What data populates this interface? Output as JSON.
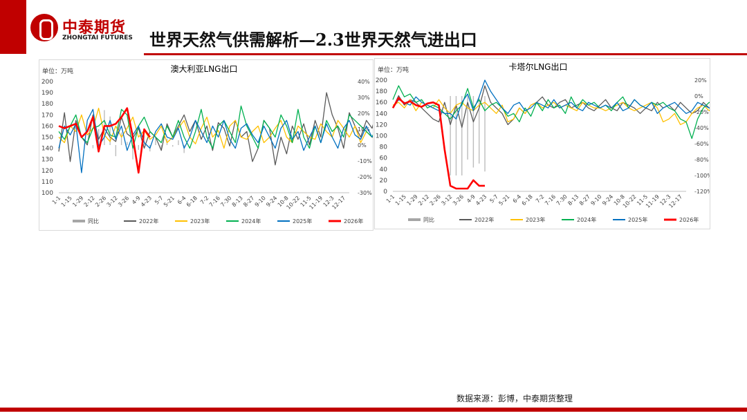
{
  "header": {
    "logo_cn": "中泰期货",
    "logo_en": "ZHONGTAI FUTURES",
    "page_title": "世界天然气供需解析—2.3世界天然气进出口"
  },
  "footer": {
    "source": "数据来源：彭博，中泰期货整理"
  },
  "colors": {
    "brand": "#c00000",
    "yoy": "#a6a6a6",
    "y2022": "#595959",
    "y2023": "#ffc000",
    "y2024": "#00b050",
    "y2025": "#0070c0",
    "y2026": "#ff0000"
  },
  "chart_data": [
    {
      "type": "line",
      "title": "澳大利亚LNG出口",
      "unit_label": "单位：万吨",
      "x_ticks": [
        "1-1",
        "1-15",
        "1-29",
        "2-12",
        "2-26",
        "3-12",
        "3-26",
        "4-9",
        "4-23",
        "5-7",
        "5-21",
        "6-4",
        "6-18",
        "7-2",
        "7-16",
        "7-30",
        "8-13",
        "8-27",
        "9-10",
        "9-24",
        "10-8",
        "10-22",
        "11-5",
        "11-19",
        "12-3",
        "12-17"
      ],
      "ylim": [
        100,
        200
      ],
      "y_ticks": [
        100,
        110,
        120,
        130,
        140,
        150,
        160,
        170,
        180,
        190,
        200
      ],
      "y2lim": [
        -30,
        40
      ],
      "y2_ticks": [
        "40%",
        "30%",
        "20%",
        "10%",
        "0%",
        "-10%",
        "-20%",
        "-30%"
      ],
      "legend": [
        "同比",
        "2022年",
        "2023年",
        "2024年",
        "2025年",
        "2026年"
      ],
      "series": [
        {
          "name": "同比",
          "axis": "right",
          "type": "bar",
          "week_start": 6,
          "values": [
            -2,
            10,
            22,
            18,
            -7,
            8,
            2,
            -9,
            -3,
            6,
            -4,
            5,
            -3,
            4,
            -1,
            3,
            -5
          ]
        },
        {
          "name": "2022年",
          "values": [
            137,
            172,
            128,
            165,
            150,
            143,
            170,
            148,
            158,
            150,
            146,
            168,
            153,
            149,
            158,
            140,
            155,
            150,
            138,
            162,
            150,
            160,
            170,
            155,
            165,
            148,
            160,
            138,
            163,
            158,
            142,
            165,
            150,
            155,
            128,
            140,
            165,
            158,
            125,
            150,
            135,
            160,
            148,
            162,
            143,
            165,
            150,
            190,
            170,
            158,
            140,
            172,
            160,
            150,
            165,
            158,
            175,
            150,
            160,
            170,
            155,
            148,
            162,
            170,
            183
          ]
        },
        {
          "name": "2023年",
          "values": [
            150,
            145,
            160,
            155,
            170,
            152,
            158,
            176,
            152,
            146,
            160,
            150,
            158,
            168,
            150,
            156,
            148,
            152,
            160,
            145,
            150,
            158,
            165,
            150,
            144,
            158,
            168,
            150,
            156,
            140,
            160,
            165,
            150,
            148,
            155,
            160,
            145,
            150,
            158,
            165,
            150,
            145,
            160,
            155,
            150,
            148,
            162,
            155,
            150,
            165,
            158,
            150,
            160,
            145,
            155,
            150,
            148,
            160,
            152,
            150,
            145,
            160,
            158,
            170,
            162
          ]
        },
        {
          "name": "2024年",
          "values": [
            155,
            148,
            160,
            170,
            150,
            145,
            158,
            160,
            165,
            152,
            150,
            175,
            170,
            140,
            160,
            168,
            155,
            150,
            145,
            160,
            150,
            165,
            150,
            140,
            155,
            175,
            150,
            140,
            160,
            165,
            155,
            145,
            178,
            160,
            150,
            140,
            165,
            158,
            150,
            170,
            160,
            145,
            175,
            150,
            140,
            160,
            145,
            165,
            155,
            160,
            150,
            170,
            165,
            160,
            155,
            150,
            162,
            158,
            160,
            155,
            150,
            145,
            162,
            160,
            165
          ]
        },
        {
          "name": "2025年",
          "values": [
            140,
            160,
            152,
            162,
            118,
            165,
            175,
            142,
            150,
            165,
            148,
            160,
            138,
            152,
            160,
            145,
            140,
            155,
            162,
            150,
            148,
            158,
            140,
            150,
            165,
            155,
            145,
            160,
            150,
            165,
            148,
            140,
            158,
            162,
            152,
            145,
            160,
            150,
            140,
            158,
            165,
            148,
            155,
            138,
            150,
            160,
            145,
            162,
            150,
            140,
            158,
            165,
            152,
            148,
            160,
            150,
            155,
            160,
            148,
            145,
            152,
            150,
            155,
            153,
            154
          ]
        },
        {
          "name": "2026年",
          "values": [
            160,
            158,
            160,
            162,
            150,
            155,
            168,
            137,
            160,
            160,
            162,
            168,
            176,
            150,
            118,
            157,
            150
          ]
        }
      ]
    },
    {
      "type": "line",
      "title": "卡塔尔LNG出口",
      "unit_label": "单位：万吨",
      "x_ticks": [
        "1-1",
        "1-15",
        "1-29",
        "2-12",
        "2-26",
        "3-12",
        "3-26",
        "4-9",
        "4-23",
        "5-7",
        "5-21",
        "6-4",
        "6-18",
        "7-2",
        "7-16",
        "7-30",
        "8-13",
        "8-27",
        "9-10",
        "9-24",
        "10-8",
        "10-22",
        "11-5",
        "11-19",
        "12-3",
        "12-17"
      ],
      "ylim": [
        0,
        200
      ],
      "y_ticks": [
        0,
        20,
        40,
        60,
        80,
        100,
        120,
        140,
        160,
        180,
        200
      ],
      "y2lim": [
        -120,
        20
      ],
      "y2_ticks": [
        "20%",
        "0%",
        "-20%",
        "-40%",
        "-60%",
        "-80%",
        "-100%",
        "-120%"
      ],
      "legend": [
        "同比",
        "2022年",
        "2023年",
        "2024年",
        "2025年",
        "2026年"
      ],
      "series": [
        {
          "name": "同比",
          "axis": "right",
          "type": "bar",
          "week_start": 10,
          "values": [
            -100,
            -100,
            -100,
            -80,
            -90,
            -85,
            -95
          ]
        },
        {
          "name": "2022年",
          "values": [
            150,
            172,
            155,
            165,
            160,
            150,
            140,
            130,
            125,
            160,
            120,
            155,
            115,
            160,
            125,
            150,
            190,
            160,
            150,
            140,
            120,
            130,
            150,
            140,
            155,
            160,
            170,
            155,
            150,
            160,
            165,
            150,
            155,
            160,
            150,
            145,
            155,
            165,
            150,
            145,
            160,
            155,
            150,
            140,
            150,
            145,
            160,
            150,
            155,
            145,
            160,
            150,
            140,
            145,
            160,
            150,
            155,
            165,
            160,
            150,
            155,
            160,
            150,
            155,
            150
          ]
        },
        {
          "name": "2023年",
          "values": [
            155,
            160,
            150,
            165,
            145,
            160,
            155,
            150,
            165,
            150,
            140,
            155,
            160,
            150,
            145,
            155,
            160,
            150,
            140,
            155,
            125,
            130,
            150,
            140,
            155,
            160,
            150,
            155,
            160,
            150,
            155,
            150,
            145,
            160,
            155,
            150,
            150,
            145,
            150,
            155,
            160,
            150,
            145,
            150,
            155,
            160,
            150,
            125,
            130,
            140,
            120,
            125,
            140,
            150,
            155,
            145,
            160,
            165,
            150,
            175,
            160,
            155,
            150,
            150,
            155
          ]
        },
        {
          "name": "2024年",
          "values": [
            165,
            190,
            170,
            175,
            160,
            165,
            150,
            155,
            150,
            140,
            130,
            145,
            155,
            185,
            150,
            165,
            145,
            155,
            160,
            150,
            135,
            140,
            125,
            150,
            135,
            160,
            145,
            165,
            150,
            155,
            140,
            170,
            150,
            165,
            155,
            160,
            150,
            155,
            145,
            160,
            170,
            150,
            165,
            155,
            150,
            160,
            155,
            160,
            150,
            145,
            130,
            125,
            95,
            130,
            150,
            160,
            155,
            165,
            170,
            150,
            165,
            160,
            145,
            170,
            150
          ]
        },
        {
          "name": "2025年",
          "values": [
            150,
            165,
            160,
            155,
            170,
            160,
            155,
            150,
            145,
            140,
            140,
            130,
            160,
            175,
            145,
            170,
            200,
            180,
            165,
            150,
            140,
            155,
            160,
            145,
            150,
            160,
            155,
            150,
            165,
            150,
            155,
            160,
            150,
            145,
            160,
            155,
            150,
            155,
            150,
            160,
            145,
            150,
            165,
            155,
            150,
            160,
            140,
            150,
            155,
            160,
            150,
            140,
            145,
            160,
            155,
            150,
            145,
            165,
            150,
            155,
            135,
            160,
            165,
            150,
            160
          ]
        },
        {
          "name": "2026年",
          "values": [
            150,
            168,
            158,
            162,
            155,
            152,
            158,
            160,
            155,
            75,
            10,
            5,
            5,
            5,
            20,
            10,
            10
          ]
        }
      ]
    }
  ]
}
